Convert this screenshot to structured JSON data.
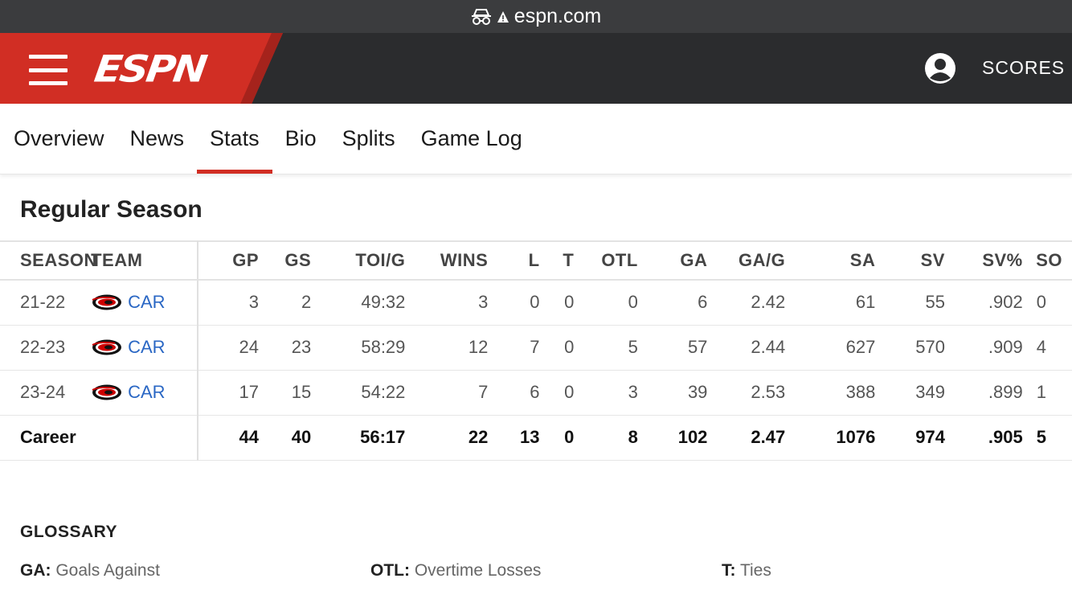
{
  "browser": {
    "url": "espn.com"
  },
  "header": {
    "logo": "ESPN",
    "scores_label": "SCORES"
  },
  "tabs": [
    {
      "label": "Overview"
    },
    {
      "label": "News"
    },
    {
      "label": "Stats",
      "active": true
    },
    {
      "label": "Bio"
    },
    {
      "label": "Splits"
    },
    {
      "label": "Game Log"
    }
  ],
  "section_title": "Regular Season",
  "table": {
    "headers": [
      "SEASON",
      "TEAM",
      "GP",
      "GS",
      "TOI/G",
      "WINS",
      "L",
      "T",
      "OTL",
      "GA",
      "GA/G",
      "SA",
      "SV",
      "SV%",
      "SO"
    ],
    "rows": [
      {
        "season": "21-22",
        "team": "CAR",
        "stats": [
          "3",
          "2",
          "49:32",
          "3",
          "0",
          "0",
          "0",
          "6",
          "2.42",
          "61",
          "55",
          ".902",
          "0"
        ]
      },
      {
        "season": "22-23",
        "team": "CAR",
        "stats": [
          "24",
          "23",
          "58:29",
          "12",
          "7",
          "0",
          "5",
          "57",
          "2.44",
          "627",
          "570",
          ".909",
          "4"
        ]
      },
      {
        "season": "23-24",
        "team": "CAR",
        "stats": [
          "17",
          "15",
          "54:22",
          "7",
          "6",
          "0",
          "3",
          "39",
          "2.53",
          "388",
          "349",
          ".899",
          "1"
        ]
      }
    ],
    "career": {
      "label": "Career",
      "stats": [
        "44",
        "40",
        "56:17",
        "22",
        "13",
        "0",
        "8",
        "102",
        "2.47",
        "1076",
        "974",
        ".905",
        "5"
      ]
    }
  },
  "glossary": {
    "title": "GLOSSARY",
    "items": [
      {
        "abbr": "GA:",
        "def": "Goals Against"
      },
      {
        "abbr": "OTL:",
        "def": "Overtime Losses"
      },
      {
        "abbr": "T:",
        "def": "Ties"
      }
    ]
  },
  "colors": {
    "accent": "#d12e24",
    "header_bg": "#2b2c2e",
    "link": "#2a67c4"
  },
  "icons": [
    "private-browsing-icon",
    "warning-icon",
    "menu-icon",
    "user-icon",
    "hurricanes-logo-icon"
  ]
}
